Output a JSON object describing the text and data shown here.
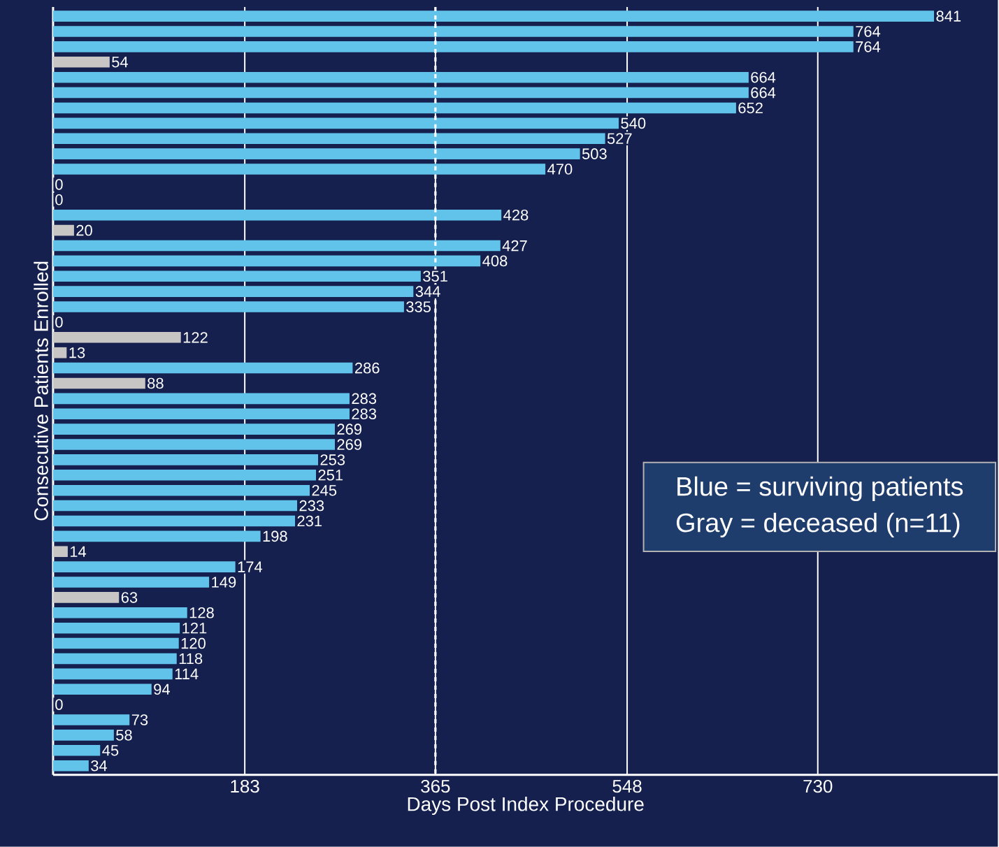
{
  "chart_data": {
    "type": "bar",
    "orientation": "horizontal",
    "xlabel": "Days Post Index Procedure",
    "ylabel": "Consecutive Patients Enrolled",
    "categories": [
      null,
      null,
      null,
      null,
      null,
      null,
      null,
      null,
      null,
      null,
      null,
      null,
      null,
      null,
      null,
      null,
      null,
      null,
      null,
      null,
      null,
      null,
      null,
      null,
      null,
      null,
      null,
      null,
      null,
      null,
      null,
      null,
      null,
      null,
      null,
      null,
      null,
      null,
      null,
      null,
      null,
      null,
      null,
      null,
      null,
      null,
      null,
      null,
      null,
      null
    ],
    "values": [
      841,
      764,
      764,
      54,
      664,
      664,
      652,
      540,
      527,
      503,
      470,
      0,
      0,
      428,
      20,
      427,
      408,
      351,
      344,
      335,
      0,
      122,
      13,
      286,
      88,
      283,
      283,
      269,
      269,
      253,
      251,
      245,
      233,
      231,
      198,
      14,
      174,
      149,
      63,
      128,
      121,
      120,
      118,
      114,
      94,
      0,
      73,
      58,
      45,
      34
    ],
    "colors": [
      "#62c3ea",
      "#62c3ea",
      "#62c3ea",
      "#c8c6c4",
      "#62c3ea",
      "#62c3ea",
      "#62c3ea",
      "#62c3ea",
      "#62c3ea",
      "#62c3ea",
      "#62c3ea",
      "#c8c6c4",
      "#c8c6c4",
      "#62c3ea",
      "#c8c6c4",
      "#62c3ea",
      "#62c3ea",
      "#62c3ea",
      "#62c3ea",
      "#62c3ea",
      "#c8c6c4",
      "#c8c6c4",
      "#c8c6c4",
      "#62c3ea",
      "#c8c6c4",
      "#62c3ea",
      "#62c3ea",
      "#62c3ea",
      "#62c3ea",
      "#62c3ea",
      "#62c3ea",
      "#62c3ea",
      "#62c3ea",
      "#62c3ea",
      "#62c3ea",
      "#c8c6c4",
      "#62c3ea",
      "#62c3ea",
      "#c8c6c4",
      "#62c3ea",
      "#62c3ea",
      "#62c3ea",
      "#62c3ea",
      "#62c3ea",
      "#62c3ea",
      "#c8c6c4",
      "#62c3ea",
      "#62c3ea",
      "#62c3ea",
      "#62c3ea"
    ],
    "xlim": [
      0,
      902
    ],
    "xticks": [
      183,
      365,
      548,
      730
    ],
    "grid": "x",
    "data_labels": true,
    "ref_lines": [
      {
        "axis": "x",
        "value": 365,
        "line_style": "dashed",
        "color": "#ffffff"
      }
    ],
    "annotations": [
      "Blue = surviving patients",
      "Gray = deceased (n=11)"
    ]
  }
}
